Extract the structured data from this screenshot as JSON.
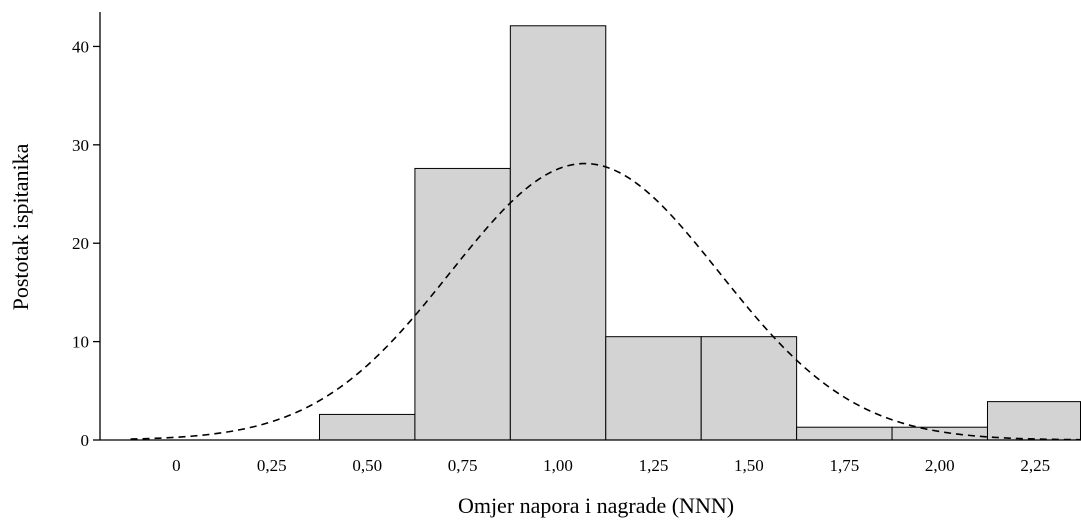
{
  "chart_data": {
    "type": "bar",
    "subtype": "histogram",
    "title": "",
    "xlabel": "Omjer napora i nagrade (NNN)",
    "ylabel": "Postotak ispitanika",
    "xlim": [
      -0.2,
      2.37
    ],
    "ylim": [
      0,
      43.5
    ],
    "x_ticks": [
      0,
      0.25,
      0.5,
      0.75,
      1.0,
      1.25,
      1.5,
      1.75,
      2.0,
      2.25
    ],
    "x_tick_labels": [
      "0",
      "0,25",
      "0,50",
      "0,75",
      "1,00",
      "1,25",
      "1,50",
      "1,75",
      "2,00",
      "2,25"
    ],
    "y_ticks": [
      0,
      10,
      20,
      30,
      40
    ],
    "y_tick_labels": [
      "0",
      "10",
      "20",
      "30",
      "40"
    ],
    "bin_width": 0.25,
    "bins": [
      {
        "x0": 0.375,
        "x1": 0.625,
        "value": 2.6
      },
      {
        "x0": 0.625,
        "x1": 0.875,
        "value": 27.6
      },
      {
        "x0": 0.875,
        "x1": 1.125,
        "value": 42.1
      },
      {
        "x0": 1.125,
        "x1": 1.375,
        "value": 10.5
      },
      {
        "x0": 1.375,
        "x1": 1.625,
        "value": 10.5
      },
      {
        "x0": 1.625,
        "x1": 1.875,
        "value": 1.3
      },
      {
        "x0": 1.875,
        "x1": 2.125,
        "value": 1.3
      },
      {
        "x0": 2.125,
        "x1": 2.375,
        "value": 3.9
      }
    ],
    "normal_curve": {
      "mean": 1.07,
      "sd": 0.352,
      "peak": 28.1,
      "x_range": [
        -0.12,
        2.37
      ],
      "style": "dashed"
    },
    "grid": false,
    "legend": "none"
  }
}
